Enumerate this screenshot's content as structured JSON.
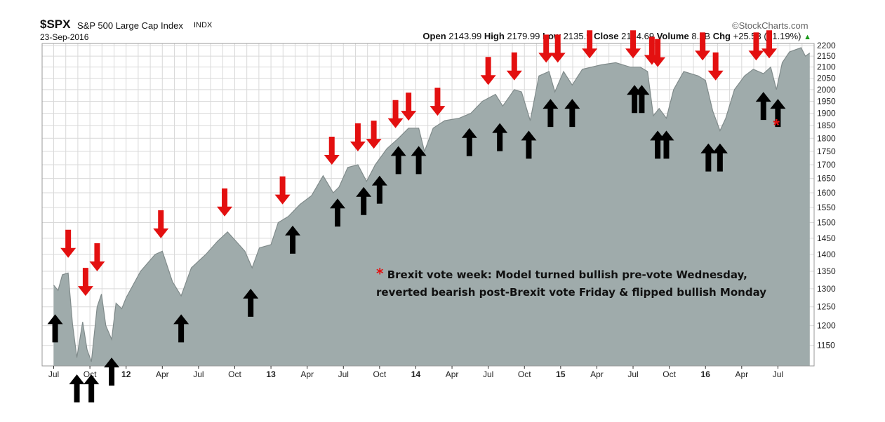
{
  "header": {
    "ticker": "$SPX",
    "name": "S&P 500 Large Cap Index",
    "exchange": "INDX",
    "date": "23-Sep-2016",
    "brand": "©StockCharts.com",
    "open_label": "Open",
    "open_value": "2143.99",
    "high_label": "High",
    "high_value": "2179.99",
    "low_label": "Low",
    "low_value": "2135.9",
    "close_label": "Close",
    "close_value": "2164.69",
    "volume_label": "Volume",
    "volume_value": "8.2B",
    "chg_label": "Chg",
    "chg_value": "+25.53 (+1.19%)",
    "chg_arrow": "▲"
  },
  "annotation": {
    "star": "*",
    "line1": "Brexit vote week: Model turned bullish pre-vote Wednesday,",
    "line2": "reverted bearish post-Brexit vote Friday & flipped bullish Monday"
  },
  "colors": {
    "area_fill": "#9fabab",
    "area_line": "#808b8b",
    "grid": "#d9d9d9",
    "sell_arrow": "#e31010",
    "buy_arrow": "#000000"
  },
  "chart_data": {
    "type": "area",
    "series": [
      {
        "values": [
          [
            2011.5,
            1310
          ],
          [
            2011.53,
            1295
          ],
          [
            2011.56,
            1340
          ],
          [
            2011.6,
            1345
          ],
          [
            2011.63,
            1205
          ],
          [
            2011.66,
            1120
          ],
          [
            2011.7,
            1210
          ],
          [
            2011.73,
            1140
          ],
          [
            2011.76,
            1110
          ],
          [
            2011.8,
            1250
          ],
          [
            2011.83,
            1285
          ],
          [
            2011.86,
            1200
          ],
          [
            2011.9,
            1165
          ],
          [
            2011.93,
            1260
          ],
          [
            2011.97,
            1245
          ],
          [
            2012.0,
            1275
          ],
          [
            2012.1,
            1350
          ],
          [
            2012.2,
            1400
          ],
          [
            2012.25,
            1410
          ],
          [
            2012.32,
            1320
          ],
          [
            2012.38,
            1280
          ],
          [
            2012.45,
            1360
          ],
          [
            2012.55,
            1400
          ],
          [
            2012.63,
            1440
          ],
          [
            2012.7,
            1470
          ],
          [
            2012.76,
            1440
          ],
          [
            2012.82,
            1410
          ],
          [
            2012.87,
            1360
          ],
          [
            2012.92,
            1420
          ],
          [
            2013.0,
            1430
          ],
          [
            2013.05,
            1500
          ],
          [
            2013.12,
            1520
          ],
          [
            2013.2,
            1560
          ],
          [
            2013.28,
            1590
          ],
          [
            2013.36,
            1660
          ],
          [
            2013.43,
            1600
          ],
          [
            2013.47,
            1620
          ],
          [
            2013.53,
            1690
          ],
          [
            2013.6,
            1700
          ],
          [
            2013.66,
            1640
          ],
          [
            2013.72,
            1700
          ],
          [
            2013.8,
            1760
          ],
          [
            2013.88,
            1800
          ],
          [
            2013.95,
            1840
          ],
          [
            2014.02,
            1840
          ],
          [
            2014.06,
            1750
          ],
          [
            2014.12,
            1840
          ],
          [
            2014.2,
            1870
          ],
          [
            2014.3,
            1880
          ],
          [
            2014.38,
            1900
          ],
          [
            2014.46,
            1950
          ],
          [
            2014.55,
            1980
          ],
          [
            2014.6,
            1930
          ],
          [
            2014.68,
            2000
          ],
          [
            2014.73,
            1990
          ],
          [
            2014.79,
            1870
          ],
          [
            2014.85,
            2060
          ],
          [
            2014.92,
            2080
          ],
          [
            2014.96,
            1990
          ],
          [
            2015.02,
            2080
          ],
          [
            2015.08,
            2020
          ],
          [
            2015.15,
            2090
          ],
          [
            2015.28,
            2110
          ],
          [
            2015.38,
            2120
          ],
          [
            2015.48,
            2100
          ],
          [
            2015.55,
            2100
          ],
          [
            2015.6,
            2080
          ],
          [
            2015.64,
            1890
          ],
          [
            2015.68,
            1920
          ],
          [
            2015.73,
            1880
          ],
          [
            2015.78,
            2000
          ],
          [
            2015.85,
            2080
          ],
          [
            2015.95,
            2060
          ],
          [
            2016.0,
            2040
          ],
          [
            2016.05,
            1910
          ],
          [
            2016.1,
            1830
          ],
          [
            2016.14,
            1880
          ],
          [
            2016.2,
            2000
          ],
          [
            2016.27,
            2060
          ],
          [
            2016.33,
            2090
          ],
          [
            2016.4,
            2070
          ],
          [
            2016.45,
            2100
          ],
          [
            2016.49,
            2000
          ],
          [
            2016.53,
            2120
          ],
          [
            2016.58,
            2170
          ],
          [
            2016.66,
            2190
          ],
          [
            2016.69,
            2150
          ],
          [
            2016.72,
            2165
          ]
        ]
      }
    ],
    "x_tick_labels": [
      "Jul",
      "Oct",
      "12",
      "Apr",
      "Jul",
      "Oct",
      "13",
      "Apr",
      "Jul",
      "Oct",
      "14",
      "Apr",
      "Jul",
      "Oct",
      "15",
      "Apr",
      "Jul",
      "Oct",
      "16",
      "Apr",
      "Jul"
    ],
    "x_ticks": [
      2011.5,
      2011.75,
      2012.0,
      2012.25,
      2012.5,
      2012.75,
      2013.0,
      2013.25,
      2013.5,
      2013.75,
      2014.0,
      2014.25,
      2014.5,
      2014.75,
      2015.0,
      2015.25,
      2015.5,
      2015.75,
      2016.0,
      2016.25,
      2016.5
    ],
    "x_range": [
      2011.42,
      2016.75
    ],
    "y_ticks": [
      1150,
      1200,
      1250,
      1300,
      1350,
      1400,
      1450,
      1500,
      1550,
      1600,
      1650,
      1700,
      1750,
      1800,
      1850,
      1900,
      1950,
      2000,
      2050,
      2100,
      2150,
      2200
    ],
    "y_scale": "log",
    "y_range": [
      1100,
      2210
    ],
    "grid": true,
    "sell_signals": [
      [
        2011.6,
        1390
      ],
      [
        2011.72,
        1280
      ],
      [
        2011.8,
        1350
      ],
      [
        2012.24,
        1450
      ],
      [
        2012.68,
        1520
      ],
      [
        2013.08,
        1560
      ],
      [
        2013.42,
        1700
      ],
      [
        2013.6,
        1750
      ],
      [
        2013.71,
        1760
      ],
      [
        2013.86,
        1840
      ],
      [
        2013.95,
        1870
      ],
      [
        2014.15,
        1890
      ],
      [
        2014.5,
        2020
      ],
      [
        2014.68,
        2040
      ],
      [
        2014.9,
        2120
      ],
      [
        2014.98,
        2120
      ],
      [
        2015.2,
        2140
      ],
      [
        2015.5,
        2140
      ],
      [
        2015.63,
        2110
      ],
      [
        2015.67,
        2100
      ],
      [
        2015.98,
        2130
      ],
      [
        2016.07,
        2040
      ],
      [
        2016.35,
        2130
      ],
      [
        2016.44,
        2140
      ]
    ],
    "buy_signals": [
      [
        2011.51,
        1230
      ],
      [
        2011.66,
        1080
      ],
      [
        2011.76,
        1080
      ],
      [
        2011.9,
        1120
      ],
      [
        2012.38,
        1230
      ],
      [
        2012.86,
        1300
      ],
      [
        2013.15,
        1490
      ],
      [
        2013.46,
        1580
      ],
      [
        2013.64,
        1620
      ],
      [
        2013.75,
        1660
      ],
      [
        2013.88,
        1770
      ],
      [
        2014.02,
        1770
      ],
      [
        2014.37,
        1840
      ],
      [
        2014.58,
        1860
      ],
      [
        2014.78,
        1830
      ],
      [
        2014.93,
        1960
      ],
      [
        2015.08,
        1960
      ],
      [
        2015.51,
        2020
      ],
      [
        2015.56,
        2020
      ],
      [
        2015.67,
        1830
      ],
      [
        2015.73,
        1830
      ],
      [
        2016.02,
        1780
      ],
      [
        2016.1,
        1780
      ],
      [
        2016.4,
        1990
      ],
      [
        2016.5,
        1960
      ]
    ],
    "marker_star": [
      2016.49,
      1830
    ]
  }
}
